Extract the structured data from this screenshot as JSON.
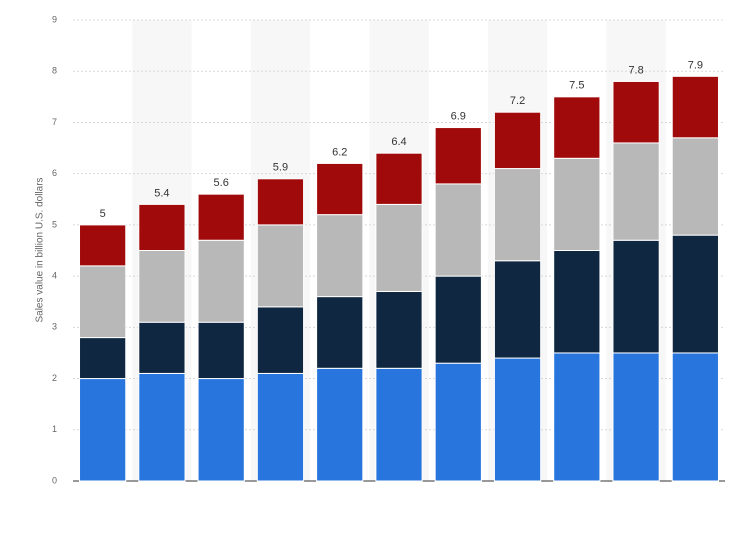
{
  "chart_data": {
    "type": "stacked_bar",
    "y_axis_label": "Sales value in billion U.S. dollars",
    "categories": [
      null,
      null,
      null,
      null,
      null,
      null,
      null,
      null,
      null,
      null,
      null
    ],
    "series": [
      {
        "color": "#2876dd",
        "values": [
          2.0,
          2.1,
          2.0,
          2.1,
          2.2,
          2.2,
          2.3,
          2.4,
          2.5,
          2.5,
          2.5
        ]
      },
      {
        "color": "#0f2740",
        "values": [
          0.8,
          1.0,
          1.1,
          1.3,
          1.4,
          1.5,
          1.7,
          1.9,
          2.0,
          2.2,
          2.3
        ]
      },
      {
        "color": "#b8b8b8",
        "values": [
          1.4,
          1.4,
          1.6,
          1.6,
          1.6,
          1.7,
          1.8,
          1.8,
          1.8,
          1.9,
          1.9
        ]
      },
      {
        "color": "#a10a0a",
        "values": [
          0.8,
          0.9,
          0.9,
          0.9,
          1.0,
          1.0,
          1.1,
          1.1,
          1.2,
          1.2,
          1.2
        ]
      }
    ],
    "totals": [
      5,
      5.4,
      5.6,
      5.9,
      6.2,
      6.4,
      6.9,
      7.2,
      7.5,
      7.8,
      7.9
    ],
    "ylim": [
      0,
      9
    ],
    "yticks": [
      0,
      1,
      2,
      3,
      4,
      5,
      6,
      7,
      8,
      9
    ],
    "grid": true
  }
}
